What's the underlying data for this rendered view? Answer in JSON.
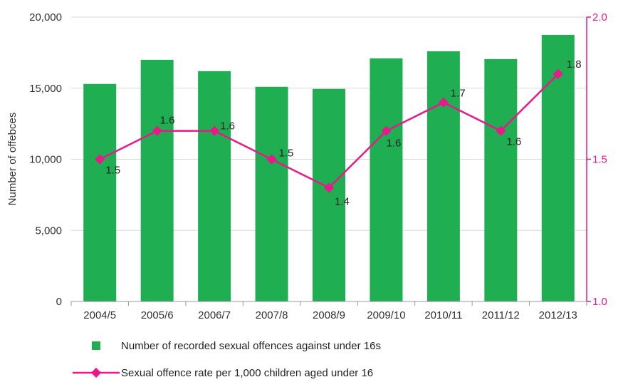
{
  "chart_data": {
    "type": "bar",
    "categories": [
      "2004/5",
      "2005/6",
      "2006/7",
      "2007/8",
      "2008/9",
      "2009/10",
      "2010/11",
      "2011/12",
      "2012/13"
    ],
    "series": [
      {
        "name": "Number of recorded sexual offences against under 16s",
        "type": "bar",
        "axis": "left",
        "values": [
          15300,
          17000,
          16200,
          15100,
          14950,
          17100,
          17600,
          17050,
          18750
        ]
      },
      {
        "name": "Sexual offence rate per 1,000 children aged under 16",
        "type": "line",
        "axis": "right",
        "values": [
          1.5,
          1.6,
          1.6,
          1.5,
          1.4,
          1.6,
          1.7,
          1.6,
          1.8
        ],
        "data_labels": [
          "1.5",
          "1.6",
          "1.6",
          "1.5",
          "1.4",
          "1.6",
          "1.7",
          "1.6",
          "1.8"
        ]
      }
    ],
    "ylabel": "Number of offebces",
    "ylim": [
      0,
      20000
    ],
    "yticks": [
      "0",
      "5,000",
      "10,000",
      "15,000",
      "20,000"
    ],
    "y2lim": [
      1.0,
      2.0
    ],
    "y2ticks": [
      "1.0",
      "1.5",
      "2.0"
    ],
    "grid": true,
    "legend_position": "bottom-left"
  },
  "colors": {
    "bar": "#1fae52",
    "line": "#e8198b",
    "grid": "#d9d9d9",
    "axis": "#999999"
  }
}
